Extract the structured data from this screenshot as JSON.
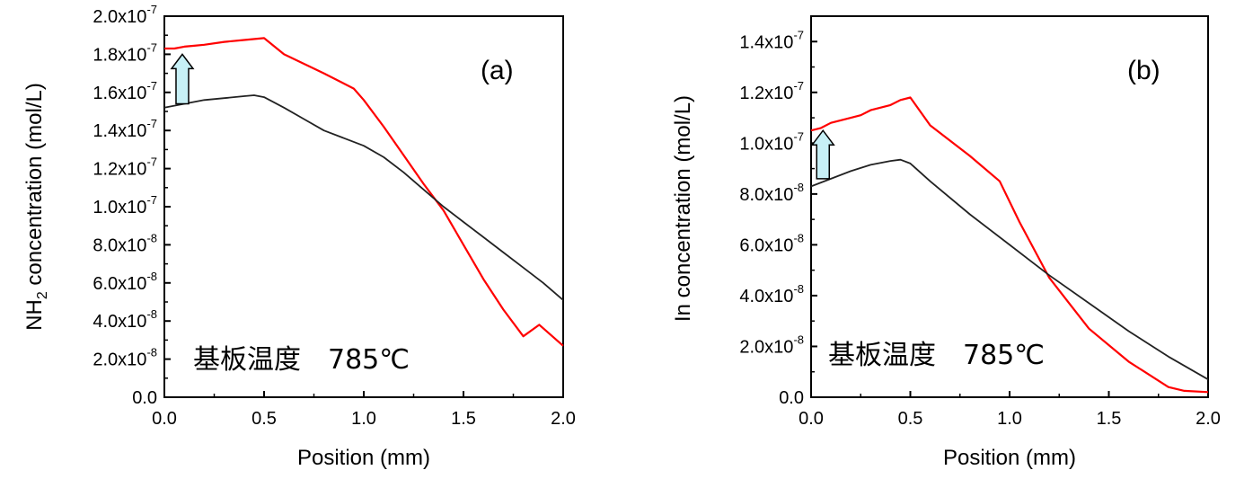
{
  "chart_data": [
    {
      "type": "line",
      "panel_label": "(a)",
      "xlabel": "Position (mm)",
      "ylabel_main": "NH",
      "ylabel_sub": "2",
      "ylabel_rest": " concentration (mol/L)",
      "xlim": [
        0,
        2.0
      ],
      "ylim": [
        0,
        2e-07
      ],
      "xticks": [
        "0.0",
        "0.5",
        "1.0",
        "1.5",
        "2.0"
      ],
      "yticks": [
        {
          "value": 0,
          "mant": "0.0",
          "exp": ""
        },
        {
          "value": 2e-08,
          "mant": "2.0x10",
          "exp": "-8"
        },
        {
          "value": 4e-08,
          "mant": "4.0x10",
          "exp": "-8"
        },
        {
          "value": 6e-08,
          "mant": "6.0x10",
          "exp": "-8"
        },
        {
          "value": 8e-08,
          "mant": "8.0x10",
          "exp": "-8"
        },
        {
          "value": 1e-07,
          "mant": "1.0x10",
          "exp": "-7"
        },
        {
          "value": 1.2e-07,
          "mant": "1.2x10",
          "exp": "-7"
        },
        {
          "value": 1.4e-07,
          "mant": "1.4x10",
          "exp": "-7"
        },
        {
          "value": 1.6e-07,
          "mant": "1.6x10",
          "exp": "-7"
        },
        {
          "value": 1.8e-07,
          "mant": "1.8x10",
          "exp": "-7"
        },
        {
          "value": 2e-07,
          "mant": "2.0x10",
          "exp": "-7"
        }
      ],
      "annotation": "基板温度　785℃",
      "arrow": {
        "x": 0.09,
        "from": 1.54e-07,
        "to": 1.8e-07
      },
      "series": [
        {
          "color": "#ff0000",
          "x": [
            0,
            0.05,
            0.1,
            0.15,
            0.2,
            0.3,
            0.4,
            0.5,
            0.6,
            0.8,
            0.95,
            1.0,
            1.1,
            1.2,
            1.3,
            1.4,
            1.5,
            1.6,
            1.7,
            1.8,
            1.88,
            2.0
          ],
          "y": [
            1.83e-07,
            1.83e-07,
            1.84e-07,
            1.845e-07,
            1.85e-07,
            1.865e-07,
            1.875e-07,
            1.885e-07,
            1.8e-07,
            1.7e-07,
            1.62e-07,
            1.56e-07,
            1.42e-07,
            1.27e-07,
            1.12e-07,
            9.8e-08,
            8e-08,
            6.2e-08,
            4.6e-08,
            3.2e-08,
            3.8e-08,
            2.7e-08
          ]
        },
        {
          "color": "#222222",
          "x": [
            0,
            0.1,
            0.2,
            0.3,
            0.4,
            0.45,
            0.5,
            0.6,
            0.7,
            0.8,
            0.9,
            1.0,
            1.1,
            1.2,
            1.3,
            1.4,
            1.5,
            1.6,
            1.7,
            1.8,
            1.9,
            2.0
          ],
          "y": [
            1.52e-07,
            1.54e-07,
            1.56e-07,
            1.57e-07,
            1.58e-07,
            1.585e-07,
            1.575e-07,
            1.52e-07,
            1.46e-07,
            1.4e-07,
            1.36e-07,
            1.32e-07,
            1.26e-07,
            1.18e-07,
            1.09e-07,
            1e-07,
            9.2e-08,
            8.4e-08,
            7.6e-08,
            6.8e-08,
            6e-08,
            5.1e-08
          ]
        }
      ]
    },
    {
      "type": "line",
      "panel_label": "(b)",
      "xlabel": "Position (mm)",
      "ylabel_main": "In concentration (mol/L)",
      "ylabel_sub": "",
      "ylabel_rest": "",
      "xlim": [
        0,
        2.0
      ],
      "ylim": [
        0,
        1.5e-07
      ],
      "xticks": [
        "0.0",
        "0.5",
        "1.0",
        "1.5",
        "2.0"
      ],
      "yticks": [
        {
          "value": 0,
          "mant": "0.0",
          "exp": ""
        },
        {
          "value": 2e-08,
          "mant": "2.0x10",
          "exp": "-8"
        },
        {
          "value": 4e-08,
          "mant": "4.0x10",
          "exp": "-8"
        },
        {
          "value": 6e-08,
          "mant": "6.0x10",
          "exp": "-8"
        },
        {
          "value": 8e-08,
          "mant": "8.0x10",
          "exp": "-8"
        },
        {
          "value": 1e-07,
          "mant": "1.0x10",
          "exp": "-7"
        },
        {
          "value": 1.2e-07,
          "mant": "1.2x10",
          "exp": "-7"
        },
        {
          "value": 1.4e-07,
          "mant": "1.4x10",
          "exp": "-7"
        }
      ],
      "annotation": "基板温度　785℃",
      "arrow": {
        "x": 0.06,
        "from": 8.6e-08,
        "to": 1.05e-07
      },
      "series": [
        {
          "color": "#ff0000",
          "x": [
            0,
            0.05,
            0.1,
            0.2,
            0.25,
            0.3,
            0.4,
            0.45,
            0.5,
            0.6,
            0.8,
            0.95,
            1.05,
            1.2,
            1.3,
            1.4,
            1.6,
            1.8,
            1.88,
            2.0
          ],
          "y": [
            1.05e-07,
            1.06e-07,
            1.08e-07,
            1.1e-07,
            1.11e-07,
            1.13e-07,
            1.15e-07,
            1.17e-07,
            1.18e-07,
            1.07e-07,
            9.5e-08,
            8.5e-08,
            6.9e-08,
            4.7e-08,
            3.7e-08,
            2.7e-08,
            1.4e-08,
            4e-09,
            2.5e-09,
            2e-09
          ]
        },
        {
          "color": "#222222",
          "x": [
            0,
            0.1,
            0.2,
            0.3,
            0.4,
            0.45,
            0.5,
            0.6,
            0.8,
            1.0,
            1.2,
            1.4,
            1.6,
            1.8,
            2.0
          ],
          "y": [
            8.3e-08,
            8.6e-08,
            8.9e-08,
            9.15e-08,
            9.3e-08,
            9.35e-08,
            9.2e-08,
            8.5e-08,
            7.2e-08,
            6e-08,
            4.8e-08,
            3.7e-08,
            2.6e-08,
            1.6e-08,
            7e-09
          ]
        }
      ]
    }
  ]
}
